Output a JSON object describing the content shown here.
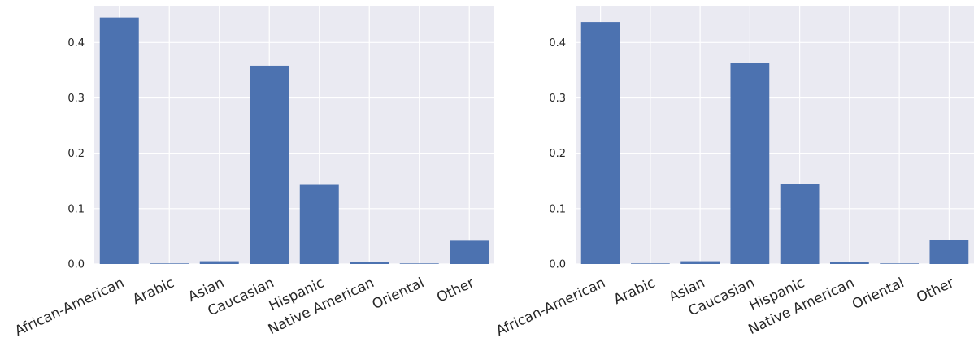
{
  "chart_data": [
    {
      "type": "bar",
      "categories": [
        "African-American",
        "Arabic",
        "Asian",
        "Caucasian",
        "Hispanic",
        "Native American",
        "Oriental",
        "Other"
      ],
      "values": [
        0.445,
        0.001,
        0.005,
        0.358,
        0.143,
        0.003,
        0.001,
        0.042
      ],
      "ylim": [
        0,
        0.465
      ],
      "yticks": [
        "0.0",
        "0.1",
        "0.2",
        "0.3",
        "0.4"
      ],
      "grid": true,
      "colors": {
        "bar": "#4c72b0",
        "background": "#eaeaf2",
        "grid": "#ffffff"
      }
    },
    {
      "type": "bar",
      "categories": [
        "African-American",
        "Arabic",
        "Asian",
        "Caucasian",
        "Hispanic",
        "Native American",
        "Oriental",
        "Other"
      ],
      "values": [
        0.437,
        0.001,
        0.005,
        0.363,
        0.144,
        0.003,
        0.001,
        0.043
      ],
      "ylim": [
        0,
        0.465
      ],
      "yticks": [
        "0.0",
        "0.1",
        "0.2",
        "0.3",
        "0.4"
      ],
      "grid": true,
      "colors": {
        "bar": "#4c72b0",
        "background": "#eaeaf2",
        "grid": "#ffffff"
      }
    }
  ]
}
